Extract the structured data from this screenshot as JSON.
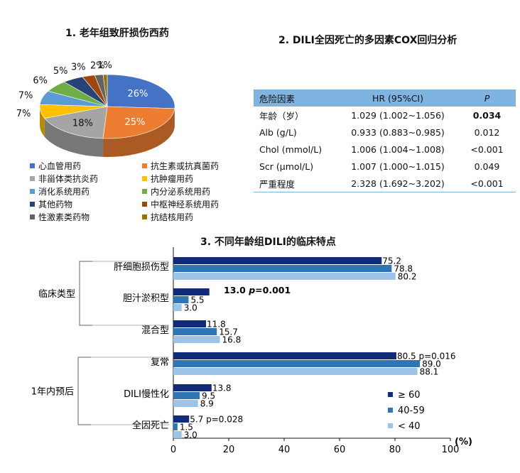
{
  "panel1": {
    "title": "1. 老年组致肝损伤西药"
  },
  "panel2": {
    "title": "2. DILI全因死亡的多因素COX回归分析",
    "headers": [
      "危险因素",
      "HR (95%CI)",
      "P"
    ],
    "rows": [
      {
        "factor": "年龄（岁）",
        "hr": "1.029 (1.002~1.056)",
        "p": "0.034",
        "bold": true
      },
      {
        "factor": "Alb (g/L)",
        "hr": "0.933 (0.883~0.985)",
        "p": "0.012",
        "bold": false
      },
      {
        "factor": "Chol (mmol/L)",
        "hr": "1.006 (1.004~1.008)",
        "p": "<0.001",
        "bold": false
      },
      {
        "factor": "Scr (μmol/L)",
        "hr": "1.007 (1.000~1.015)",
        "p": "0.049",
        "bold": false
      },
      {
        "factor": "严重程度",
        "hr": "2.328 (1.692~3.202)",
        "p": "<0.001",
        "bold": false
      }
    ]
  },
  "panel3": {
    "title": "3. 不同年龄组DILI的临床特点"
  },
  "chart_data": [
    {
      "type": "pie",
      "style": "3d",
      "labels": [
        "心血管用药",
        "抗生素或抗真菌药",
        "非甾体类抗炎药",
        "抗肿瘤用药",
        "消化系统用药",
        "内分泌系统用药",
        "其他药物",
        "中枢神经系统用药",
        "性激素类药物",
        "抗结核用药"
      ],
      "values": [
        26,
        25,
        18,
        7,
        7,
        6,
        5,
        3,
        2,
        1
      ],
      "value_labels": [
        "26%",
        "25%",
        "18%",
        "7%",
        "7%",
        "6%",
        "5%",
        "3%",
        "2%",
        "1%"
      ],
      "colors": [
        "#4472c4",
        "#ed7d31",
        "#a5a5a5",
        "#ffc000",
        "#5b9bd5",
        "#70ad47",
        "#264478",
        "#9e480e",
        "#636363",
        "#997300"
      ],
      "legend": "bottom"
    },
    {
      "type": "bar",
      "orientation": "horizontal",
      "groups": [
        {
          "label": "临床类型",
          "categories": [
            "肝细胞损伤型",
            "胆汁淤积型",
            "混合型"
          ]
        },
        {
          "label": "1年内预后",
          "categories": [
            "复常",
            "DILI慢性化",
            "全因死亡"
          ]
        }
      ],
      "categories": [
        "肝细胞损伤型",
        "胆汁淤积型",
        "混合型",
        "复常",
        "DILI慢性化",
        "全因死亡"
      ],
      "series": [
        {
          "name": "≥ 60",
          "color": "#0f2b7a",
          "values": [
            75.2,
            13.0,
            11.8,
            80.5,
            13.8,
            5.7
          ]
        },
        {
          "name": "40-59",
          "color": "#2e75b6",
          "values": [
            78.8,
            5.5,
            15.7,
            89.0,
            9.5,
            1.5
          ]
        },
        {
          "name": "< 40",
          "color": "#9dc3e6",
          "values": [
            80.2,
            3.0,
            16.8,
            88.1,
            8.9,
            3.0
          ]
        }
      ],
      "value_labels": [
        [
          "75.2",
          "78.8",
          "80.2"
        ],
        [
          "",
          "5.5",
          "3.0"
        ],
        [
          "11.8",
          "15.7",
          "16.8"
        ],
        [
          "80.5 p=0.016",
          "89.0",
          "88.1"
        ],
        [
          "13.8",
          "9.5",
          "8.9"
        ],
        [
          "5.7 p=0.028",
          "1.5",
          "3.0"
        ]
      ],
      "annotations": [
        {
          "category": "胆汁淤积型",
          "text_prefix": "13.0 ",
          "text_p": "p",
          "text_suffix": "=0.001",
          "bold": true
        }
      ],
      "xlim": [
        0,
        100
      ],
      "xticks": [
        0,
        20,
        40,
        60,
        80,
        100
      ],
      "xlabel": "(%)",
      "legend": "bottom-right",
      "grid": false
    }
  ]
}
